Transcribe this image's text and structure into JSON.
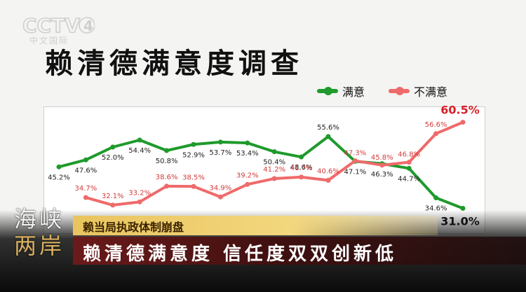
{
  "logo": {
    "text": "CCTV4",
    "sub": "中文国际"
  },
  "title": "赖清德满意度调查",
  "legend": [
    {
      "name": "满意",
      "color": "#1f9a2c"
    },
    {
      "name": "不满意",
      "color": "#ef6a6a"
    }
  ],
  "chart_data": {
    "type": "line",
    "title": "赖清德满意度调查",
    "x": [
      1,
      2,
      3,
      4,
      5,
      6,
      7,
      8,
      9,
      10,
      11,
      12,
      13,
      14,
      15,
      16,
      17,
      18,
      19,
      20,
      21,
      22
    ],
    "series": [
      {
        "name": "满意",
        "color": "#1f9a2c",
        "values": [
          45.2,
          47.6,
          52.0,
          54.4,
          50.8,
          52.9,
          53.7,
          53.4,
          50.4,
          48.6,
          55.6,
          47.1,
          46.3,
          44.7,
          34.6,
          31.0
        ],
        "x": [
          1,
          2,
          3,
          4,
          5,
          6,
          7,
          8,
          9,
          10,
          11,
          12,
          13,
          14,
          15,
          16
        ],
        "labels": [
          "45.2%",
          "47.6%",
          "52.0%",
          "54.4%",
          "50.8%",
          "52.9%",
          "53.7%",
          "53.4%",
          "50.4%",
          "48.6%",
          "55.6%",
          "47.1%",
          "46.3%",
          "44.7%",
          "34.6%",
          "31.0%"
        ]
      },
      {
        "name": "不满意",
        "color": "#ef6a6a",
        "values": [
          34.7,
          32.1,
          33.2,
          38.6,
          38.5,
          34.9,
          39.2,
          41.2,
          41.7,
          40.6,
          47.3,
          45.8,
          46.8,
          56.6,
          60.5
        ],
        "x": [
          2,
          3,
          4,
          5,
          6,
          7,
          8,
          9,
          10,
          11,
          12,
          13,
          14,
          15,
          16
        ],
        "labels": [
          "34.7%",
          "32.1%",
          "33.2%",
          "38.6%",
          "38.5%",
          "34.9%",
          "39.2%",
          "41.2%",
          "41.7%",
          "40.6%",
          "47.3%",
          "45.8%",
          "46.8%",
          "56.6%",
          "60.5%"
        ]
      }
    ],
    "ylim": [
      28,
      64
    ],
    "legend_position": "top-right"
  },
  "program": {
    "line1": "海峡",
    "line2": "两岸"
  },
  "subtitle": "赖当局执政体制崩盘",
  "headline": "赖清德满意度 信任度双双创新低"
}
